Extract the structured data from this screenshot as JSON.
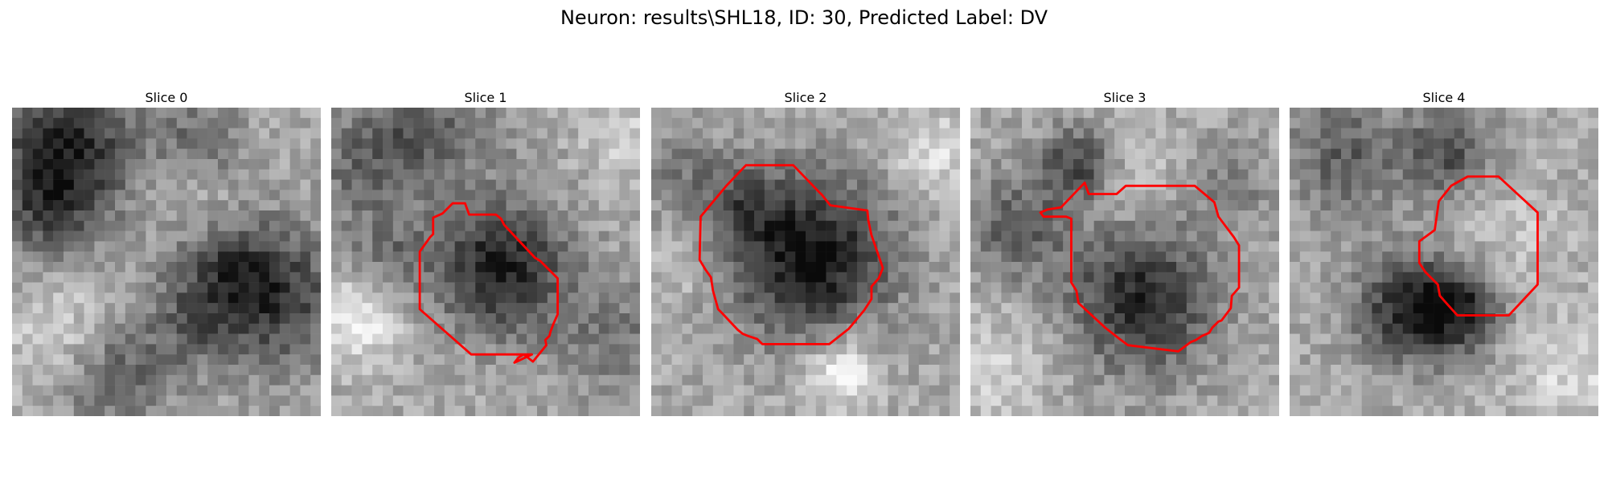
{
  "figure": {
    "title": "Neuron: results\\SHL18, ID: 30, Predicted Label: DV"
  },
  "panels": [
    {
      "title": "Slice 0",
      "has_contour": false
    },
    {
      "title": "Slice 1",
      "has_contour": true
    },
    {
      "title": "Slice 2",
      "has_contour": true
    },
    {
      "title": "Slice 3",
      "has_contour": true
    },
    {
      "title": "Slice 4",
      "has_contour": true
    }
  ],
  "colors": {
    "contour": "#ff0000",
    "background": "#ffffff"
  }
}
